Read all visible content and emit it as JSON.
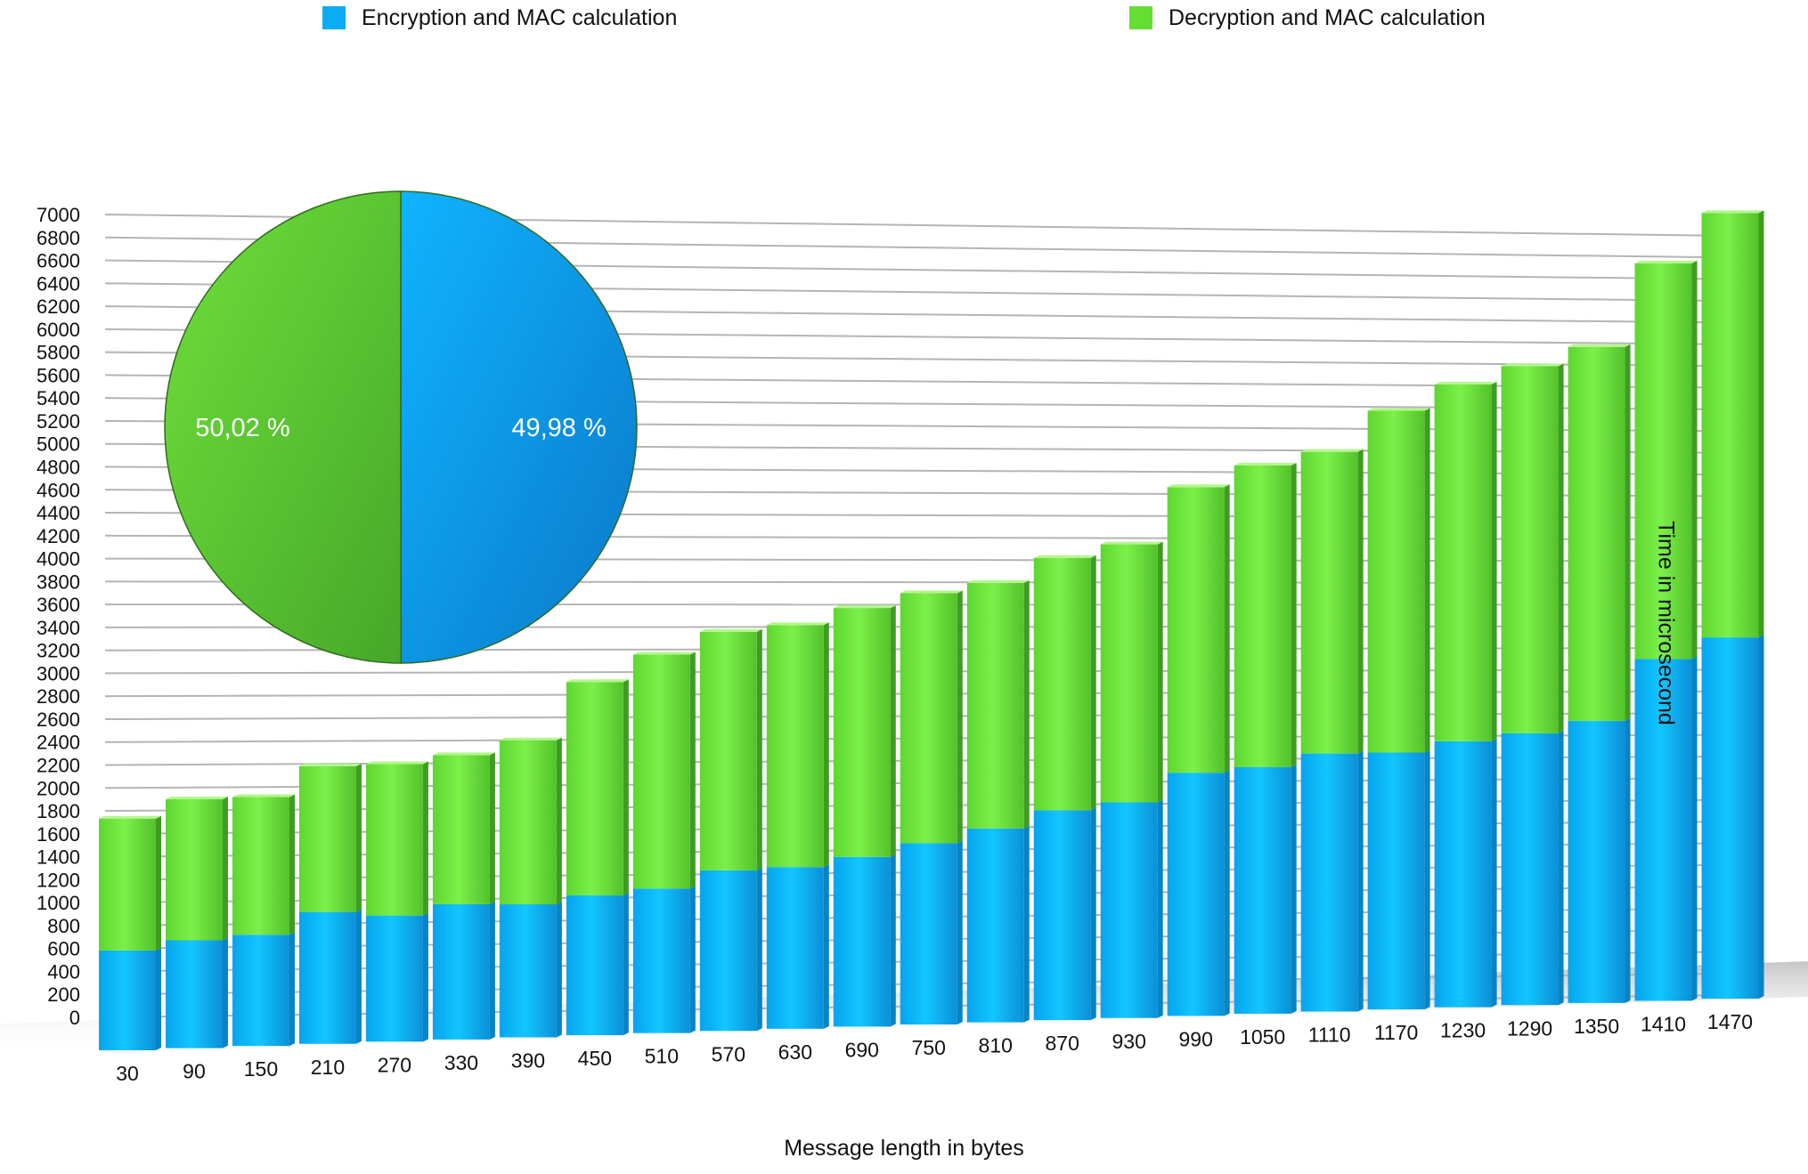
{
  "chart_data": {
    "type": "bar",
    "stacked": true,
    "xlabel": "Message length in bytes",
    "ylabel": "Time in microsecond",
    "ylim": [
      0,
      7000
    ],
    "ytick_step": 200,
    "grid": true,
    "legend_position": "top",
    "categories": [
      "30",
      "90",
      "150",
      "210",
      "270",
      "330",
      "390",
      "450",
      "510",
      "570",
      "630",
      "690",
      "750",
      "810",
      "870",
      "930",
      "990",
      "1050",
      "1110",
      "1170",
      "1230",
      "1290",
      "1350",
      "1410",
      "1470"
    ],
    "series": [
      {
        "name": "Encryption and MAC calculation",
        "color": "#0aabf5",
        "values": [
          870,
          940,
          970,
          1150,
          1100,
          1180,
          1160,
          1220,
          1260,
          1400,
          1410,
          1480,
          1580,
          1690,
          1830,
          1880,
          2120,
          2150,
          2250,
          2240,
          2320,
          2370,
          2460,
          2980,
          3150
        ]
      },
      {
        "name": "Decryption and MAC calculation",
        "color": "#66dd33",
        "values": [
          1150,
          1230,
          1200,
          1270,
          1320,
          1300,
          1430,
          1860,
          2040,
          2080,
          2110,
          2170,
          2180,
          2140,
          2200,
          2250,
          2490,
          2630,
          2630,
          2980,
          3110,
          3200,
          3260,
          3450,
          3700
        ]
      }
    ],
    "inset_pie": {
      "type": "pie",
      "slices": [
        {
          "series": "Encryption and MAC calculation",
          "value": 49.98,
          "label": "49,98 %",
          "color": "#0aabf5"
        },
        {
          "series": "Decryption and MAC calculation",
          "value": 50.02,
          "label": "50,02 %",
          "color": "#66dd33"
        }
      ]
    }
  }
}
